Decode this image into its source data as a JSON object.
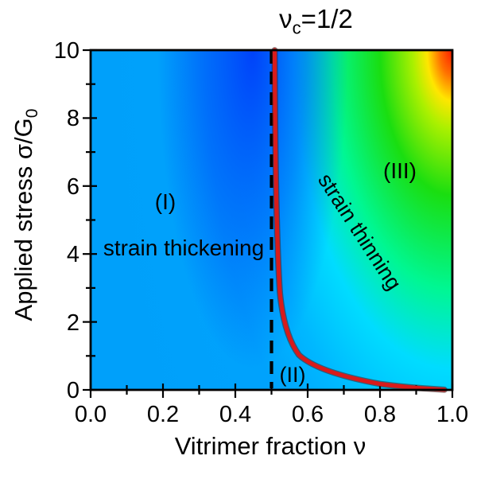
{
  "figure": {
    "title": {
      "symbol": "ν",
      "subscript": "c",
      "equals": "=1/2"
    },
    "y_axis": {
      "label_main": "Applied stress σ/G",
      "label_subscript": "0",
      "tick_labels": [
        "10",
        "8",
        "6",
        "4",
        "2",
        "0"
      ]
    },
    "x_axis": {
      "label": "Vitrimer fraction ν",
      "tick_labels": [
        "0.0",
        "0.2",
        "0.4",
        "0.6",
        "0.8",
        "1.0"
      ]
    },
    "regions": {
      "region1_id": "(I)",
      "region1_name": "strain thickening",
      "region2_id": "(II)",
      "region3_id": "(III)",
      "region3_name": "strain thinning"
    },
    "colors": {
      "boundary_curve": "#d81b1b",
      "critical_line": "#000000",
      "frame": "#000000",
      "colormap_low": "#00a0fa",
      "colormap_mid": "#1ade10",
      "colormap_high": "#ff1a00",
      "deep_blue_pocket": "#0030f5"
    }
  },
  "chart_data": {
    "type": "heatmap",
    "title": "νc=1/2",
    "xlabel": "Vitrimer fraction ν",
    "ylabel": "Applied stress σ/G0",
    "xlim": [
      0.0,
      1.0
    ],
    "ylim": [
      0,
      10
    ],
    "x_ticks": [
      0.0,
      0.2,
      0.4,
      0.6,
      0.8,
      1.0
    ],
    "y_ticks": [
      0,
      2,
      4,
      6,
      8,
      10
    ],
    "x_minor_step": 0.1,
    "y_minor_step": 1,
    "grid": false,
    "colormap": "rainbow: sky-blue (low) through cyan, green, yellow to red (high); value grows toward high ν and high σ; deep-blue minimum pocket near ν≈0.45, σ≈10",
    "critical_line": {
      "x": 0.5,
      "style": "dashed-vertical",
      "label": "νc=1/2"
    },
    "phase_boundary_curve": {
      "color": "#d81b1b",
      "points_nu_sigma": [
        [
          0.509,
          10.0
        ],
        [
          0.512,
          7.0
        ],
        [
          0.515,
          4.4
        ],
        [
          0.523,
          2.9
        ],
        [
          0.535,
          2.0
        ],
        [
          0.551,
          1.45
        ],
        [
          0.576,
          1.03
        ],
        [
          0.613,
          0.66
        ],
        [
          0.692,
          0.3
        ],
        [
          0.8,
          0.175
        ],
        [
          0.866,
          0.095
        ],
        [
          0.928,
          0.035
        ],
        [
          0.978,
          0.005
        ]
      ]
    },
    "regions": [
      {
        "id": "(I)",
        "name": "strain thickening",
        "location": "ν < 0.5"
      },
      {
        "id": "(II)",
        "name": "",
        "location": "ν > 0.5, below boundary curve"
      },
      {
        "id": "(III)",
        "name": "strain thinning",
        "location": "ν > 0.5, above boundary curve"
      }
    ]
  }
}
